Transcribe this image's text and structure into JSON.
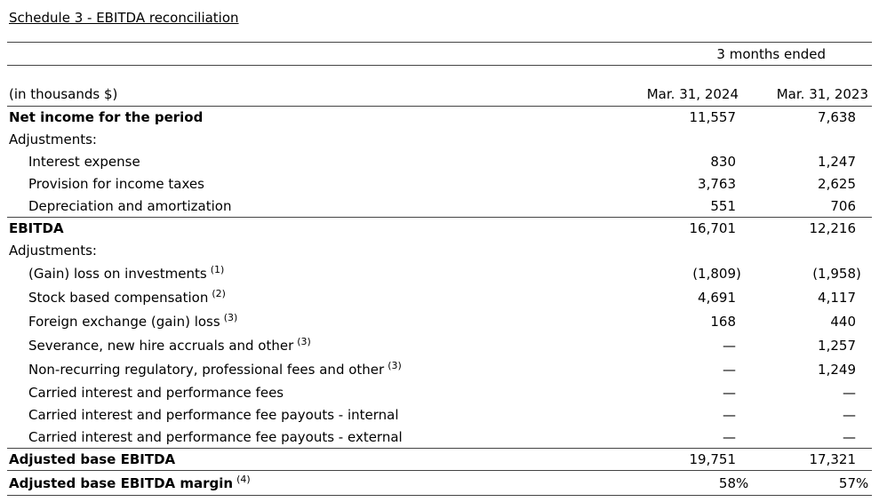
{
  "page": {
    "title": "Schedule 3 - EBITDA reconciliation"
  },
  "table": {
    "period_header": "3 months ended",
    "unit_label": "(in thousands $)",
    "columns": [
      "Mar. 31, 2024",
      "Mar. 31, 2023"
    ],
    "rows": [
      {
        "label": "Net income for the period",
        "sup": "",
        "bold": true,
        "indent": 0,
        "values": [
          "11,557",
          "7,638"
        ],
        "rule_below": false
      },
      {
        "label": "Adjustments:",
        "sup": "",
        "bold": false,
        "indent": 0,
        "values": [
          "",
          ""
        ],
        "rule_below": false
      },
      {
        "label": "Interest expense",
        "sup": "",
        "bold": false,
        "indent": 1,
        "values": [
          "830",
          "1,247"
        ],
        "rule_below": false
      },
      {
        "label": "Provision for income taxes",
        "sup": "",
        "bold": false,
        "indent": 1,
        "values": [
          "3,763",
          "2,625"
        ],
        "rule_below": false
      },
      {
        "label": "Depreciation and amortization",
        "sup": "",
        "bold": false,
        "indent": 1,
        "values": [
          "551",
          "706"
        ],
        "rule_below": true
      },
      {
        "label": "EBITDA",
        "sup": "",
        "bold": true,
        "indent": 0,
        "values": [
          "16,701",
          "12,216"
        ],
        "rule_below": false
      },
      {
        "label": "Adjustments:",
        "sup": "",
        "bold": false,
        "indent": 0,
        "values": [
          "",
          ""
        ],
        "rule_below": false
      },
      {
        "label": "(Gain) loss on investments",
        "sup": "(1)",
        "bold": false,
        "indent": 1,
        "values": [
          "(1,809)",
          "(1,958)"
        ],
        "rule_below": false
      },
      {
        "label": "Stock based compensation",
        "sup": "(2)",
        "bold": false,
        "indent": 1,
        "values": [
          "4,691",
          "4,117"
        ],
        "rule_below": false
      },
      {
        "label": "Foreign exchange (gain) loss",
        "sup": "(3)",
        "bold": false,
        "indent": 1,
        "values": [
          "168",
          "440"
        ],
        "rule_below": false
      },
      {
        "label": "Severance, new hire accruals and other",
        "sup": "(3)",
        "bold": false,
        "indent": 1,
        "values": [
          "—",
          "1,257"
        ],
        "rule_below": false
      },
      {
        "label": "Non-recurring regulatory, professional fees and other",
        "sup": "(3)",
        "bold": false,
        "indent": 1,
        "values": [
          "—",
          "1,249"
        ],
        "rule_below": false
      },
      {
        "label": "Carried interest and performance fees",
        "sup": "",
        "bold": false,
        "indent": 1,
        "values": [
          "—",
          "—"
        ],
        "rule_below": false
      },
      {
        "label": "Carried interest and performance fee payouts - internal",
        "sup": "",
        "bold": false,
        "indent": 1,
        "values": [
          "—",
          "—"
        ],
        "rule_below": false
      },
      {
        "label": "Carried interest and performance fee payouts - external",
        "sup": "",
        "bold": false,
        "indent": 1,
        "values": [
          "—",
          "—"
        ],
        "rule_below": true
      },
      {
        "label": "Adjusted base EBITDA",
        "sup": "",
        "bold": true,
        "indent": 0,
        "values": [
          "19,751",
          "17,321"
        ],
        "rule_below": true
      },
      {
        "label": "Adjusted base EBITDA margin",
        "sup": "(4)",
        "bold": true,
        "indent": 0,
        "values": [
          "58%",
          "57%"
        ],
        "rule_below": true
      }
    ]
  },
  "colors": {
    "text": "#000000",
    "rule": "#444444",
    "background": "#ffffff"
  }
}
